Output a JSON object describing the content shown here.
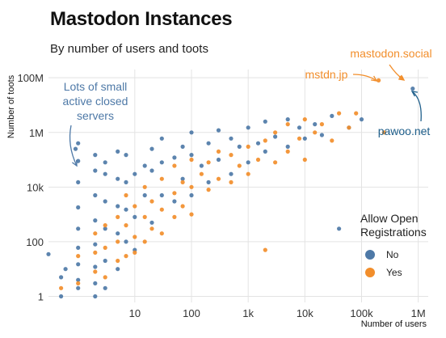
{
  "chart_data": {
    "type": "scatter",
    "title": "Mastodon Instances",
    "subtitle": "By number of users and toots",
    "xlabel": "Number of users",
    "ylabel": "Number of toots",
    "x_scale": "log",
    "y_scale": "log",
    "xlim": [
      0.3,
      1500000
    ],
    "ylim": [
      0.6,
      200000000
    ],
    "x_ticks": [
      {
        "value": 10,
        "label": "10"
      },
      {
        "value": 100,
        "label": "100"
      },
      {
        "value": 1000,
        "label": "1k"
      },
      {
        "value": 10000,
        "label": "10k"
      },
      {
        "value": 100000,
        "label": "100k"
      },
      {
        "value": 1000000,
        "label": "1M"
      }
    ],
    "y_ticks": [
      {
        "value": 1,
        "label": "1"
      },
      {
        "value": 100,
        "label": "100"
      },
      {
        "value": 10000,
        "label": "10k"
      },
      {
        "value": 1000000,
        "label": "1M"
      },
      {
        "value": 100000000,
        "label": "100M"
      }
    ],
    "grid": true,
    "legend": {
      "title": "Allow Open Registrations",
      "placement": "right",
      "entries": [
        {
          "key": "no",
          "label": "No",
          "color": "#4e79a7"
        },
        {
          "key": "yes",
          "label": "Yes",
          "color": "#f28e2b"
        }
      ]
    },
    "series": [
      {
        "name": "No",
        "color": "#4e79a7",
        "points": [
          [
            0.3,
            35
          ],
          [
            0.5,
            1
          ],
          [
            0.5,
            5
          ],
          [
            0.6,
            10
          ],
          [
            0.9,
            250000
          ],
          [
            1,
            2
          ],
          [
            1,
            4
          ],
          [
            1,
            15
          ],
          [
            1,
            60
          ],
          [
            1,
            300
          ],
          [
            1,
            1800
          ],
          [
            1,
            15000
          ],
          [
            1,
            90000
          ],
          [
            1,
            400000
          ],
          [
            2,
            1
          ],
          [
            2,
            3
          ],
          [
            2,
            12
          ],
          [
            2,
            80
          ],
          [
            2,
            600
          ],
          [
            2,
            5000
          ],
          [
            2,
            40000
          ],
          [
            2,
            150000
          ],
          [
            3,
            2
          ],
          [
            3,
            20
          ],
          [
            3,
            300
          ],
          [
            3,
            3000
          ],
          [
            3,
            30000
          ],
          [
            3,
            80000
          ],
          [
            5,
            10
          ],
          [
            5,
            200
          ],
          [
            5,
            2000
          ],
          [
            5,
            20000
          ],
          [
            5,
            200000
          ],
          [
            7,
            100
          ],
          [
            7,
            1500
          ],
          [
            7,
            15000
          ],
          [
            7,
            150000
          ],
          [
            10,
            50
          ],
          [
            10,
            800
          ],
          [
            10,
            30000
          ],
          [
            15,
            5000
          ],
          [
            15,
            60000
          ],
          [
            20,
            500
          ],
          [
            20,
            40000
          ],
          [
            20,
            250000
          ],
          [
            30,
            5000
          ],
          [
            30,
            80000
          ],
          [
            30,
            600000
          ],
          [
            50,
            3000
          ],
          [
            50,
            120000
          ],
          [
            70,
            20000
          ],
          [
            70,
            300000
          ],
          [
            100,
            5000
          ],
          [
            100,
            150000
          ],
          [
            100,
            1000000
          ],
          [
            150,
            60000
          ],
          [
            200,
            15000
          ],
          [
            200,
            400000
          ],
          [
            300,
            100000
          ],
          [
            300,
            1200000
          ],
          [
            500,
            30000
          ],
          [
            500,
            600000
          ],
          [
            700,
            300000
          ],
          [
            1000,
            80000
          ],
          [
            1000,
            1500000
          ],
          [
            1500,
            400000
          ],
          [
            2000,
            200000
          ],
          [
            2000,
            2500000
          ],
          [
            3000,
            700000
          ],
          [
            5000,
            300000
          ],
          [
            5000,
            3000000
          ],
          [
            8000,
            1500000
          ],
          [
            10000,
            600000
          ],
          [
            15000,
            2000000
          ],
          [
            20000,
            800000
          ],
          [
            30000,
            4000000
          ],
          [
            40000,
            300
          ],
          [
            60000,
            1500000
          ],
          [
            100000,
            3000000
          ],
          [
            800000,
            40000000
          ]
        ]
      },
      {
        "name": "Yes",
        "color": "#f28e2b",
        "points": [
          [
            0.5,
            2
          ],
          [
            1,
            3
          ],
          [
            1,
            30
          ],
          [
            2,
            8
          ],
          [
            2,
            40
          ],
          [
            2,
            200
          ],
          [
            3,
            5
          ],
          [
            3,
            60
          ],
          [
            3,
            400
          ],
          [
            5,
            20
          ],
          [
            5,
            100
          ],
          [
            5,
            800
          ],
          [
            7,
            30
          ],
          [
            7,
            400
          ],
          [
            7,
            5000
          ],
          [
            10,
            40
          ],
          [
            10,
            150
          ],
          [
            10,
            2000
          ],
          [
            15,
            100
          ],
          [
            15,
            800
          ],
          [
            15,
            10000
          ],
          [
            20,
            300
          ],
          [
            20,
            3000
          ],
          [
            30,
            200
          ],
          [
            30,
            1500
          ],
          [
            30,
            20000
          ],
          [
            50,
            800
          ],
          [
            50,
            6000
          ],
          [
            50,
            60000
          ],
          [
            70,
            2000
          ],
          [
            70,
            15000
          ],
          [
            100,
            1000
          ],
          [
            100,
            10000
          ],
          [
            100,
            100000
          ],
          [
            150,
            30000
          ],
          [
            200,
            8000
          ],
          [
            200,
            80000
          ],
          [
            300,
            20000
          ],
          [
            300,
            200000
          ],
          [
            500,
            15000
          ],
          [
            500,
            150000
          ],
          [
            700,
            60000
          ],
          [
            1000,
            30000
          ],
          [
            1000,
            300000
          ],
          [
            1500,
            100000
          ],
          [
            2000,
            50
          ],
          [
            2000,
            500000
          ],
          [
            3000,
            80000
          ],
          [
            3000,
            1000000
          ],
          [
            5000,
            200000
          ],
          [
            5000,
            2000000
          ],
          [
            8000,
            600000
          ],
          [
            10000,
            100000
          ],
          [
            10000,
            3000000
          ],
          [
            15000,
            1000000
          ],
          [
            20000,
            2000000
          ],
          [
            30000,
            500000
          ],
          [
            40000,
            5000000
          ],
          [
            60000,
            1500000
          ],
          [
            80000,
            5000000
          ],
          [
            200000,
            80000000
          ],
          [
            250000,
            1000000
          ],
          [
            500000,
            100000000
          ]
        ]
      }
    ],
    "annotations": [
      {
        "text_lines": [
          "Lots of small",
          "active closed",
          "servers"
        ],
        "color": "#4e79a7"
      },
      {
        "text_lines": [
          "mstdn.jp"
        ],
        "color": "#f28e2b"
      },
      {
        "text_lines": [
          "mastodon.social"
        ],
        "color": "#f28e2b"
      },
      {
        "text_lines": [
          "pawoo.net"
        ],
        "color": "#1f5f8b"
      }
    ]
  }
}
